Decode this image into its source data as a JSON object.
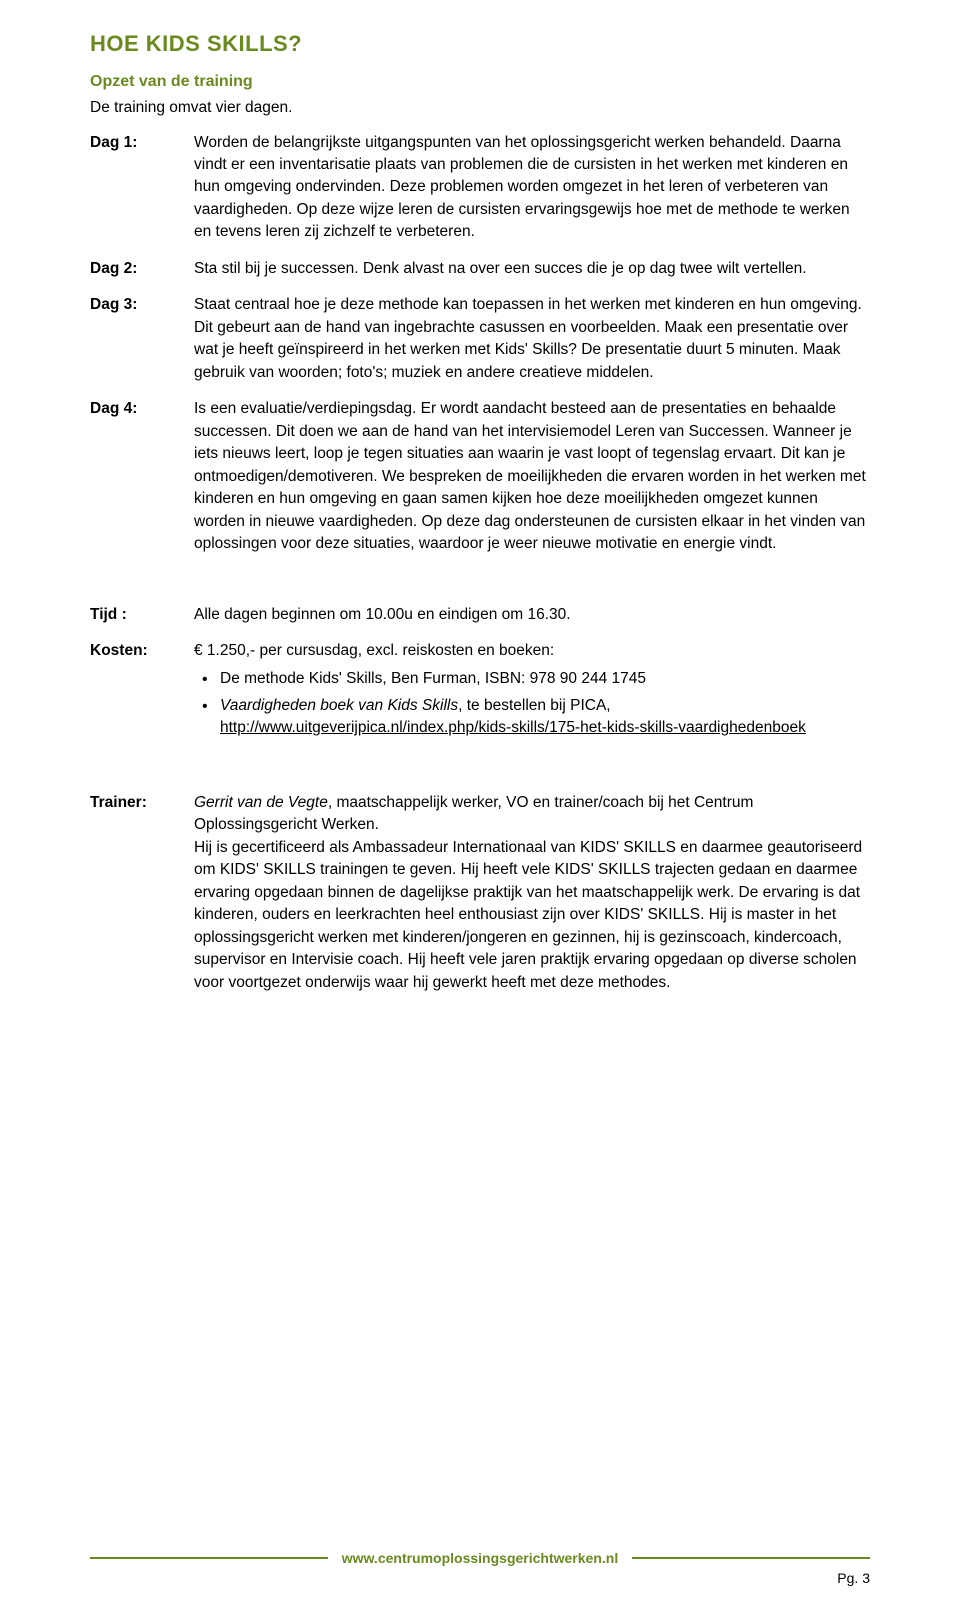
{
  "title": "HOE KIDS SKILLS?",
  "subtitle": "Opzet van de training",
  "intro": "De training omvat vier dagen.",
  "days": [
    {
      "label": "Dag 1:",
      "text": "Worden de belangrijkste uitgangspunten van het oplossingsgericht werken behandeld. Daarna vindt er een inventarisatie plaats van problemen die de cursisten in het werken met kinderen en hun omgeving ondervinden. Deze problemen worden omgezet in het leren of verbeteren van vaardigheden. Op deze wijze leren de cursisten ervaringsgewijs hoe met de methode te werken en tevens leren zij zichzelf te verbeteren."
    },
    {
      "label": "Dag 2:",
      "text": "Sta stil bij je successen. Denk alvast na over een succes die je op dag twee wilt vertellen."
    },
    {
      "label": "Dag 3:",
      "text": "Staat centraal hoe je deze methode kan toepassen in het werken met kinderen en hun omgeving. Dit gebeurt aan de hand van ingebrachte casussen en voorbeelden. Maak een presentatie over wat je heeft geïnspireerd in het werken met Kids' Skills? De presentatie duurt 5 minuten. Maak gebruik van woorden; foto's; muziek en andere creatieve middelen."
    },
    {
      "label": "Dag 4:",
      "text": "Is een evaluatie/verdiepingsdag. Er wordt aandacht besteed aan de presentaties en behaalde successen. Dit doen we aan de hand van het intervisiemodel Leren van Successen. Wanneer je iets nieuws leert, loop je tegen situaties aan waarin je vast loopt of tegenslag ervaart. Dit kan je ontmoedigen/demotiveren. We bespreken de moeilijkheden die ervaren worden in het werken met kinderen en hun omgeving en gaan samen kijken hoe deze moeilijkheden omgezet kunnen worden in nieuwe vaardigheden. Op deze dag ondersteunen de cursisten elkaar in het vinden van oplossingen voor deze situaties, waardoor je weer nieuwe motivatie en energie vindt."
    }
  ],
  "tijd": {
    "label": "Tijd :",
    "text": "Alle dagen beginnen om 10.00u en eindigen om 16.30."
  },
  "kosten": {
    "label": "Kosten:",
    "text": "€ 1.250,- per cursusdag, excl. reiskosten en boeken:",
    "bullets": [
      {
        "text": "De methode Kids' Skills, Ben Furman, ISBN: 978 90 244 1745"
      },
      {
        "italic": "Vaardigheden boek van Kids Skills",
        "rest": ", te bestellen bij PICA, ",
        "link_text": "http://www.uitgeverijpica.nl/index.php/kids-skills/175-het-kids-skills-vaardighedenboek",
        "link_href": "http://www.uitgeverijpica.nl/index.php/kids-skills/175-het-kids-skills-vaardighedenboek"
      }
    ]
  },
  "trainer": {
    "label": "Trainer:",
    "name": "Gerrit van de Vegte",
    "after_name": ", maatschappelijk werker, VO en trainer/coach bij het Centrum Oplossingsgericht Werken.",
    "body": "Hij is gecertificeerd als Ambassadeur Internationaal van KIDS' SKILLS en daarmee geautoriseerd om KIDS' SKILLS trainingen te geven. Hij heeft vele KIDS' SKILLS trajecten gedaan en daarmee ervaring opgedaan binnen de dagelijkse praktijk van het maatschappelijk werk. De ervaring is dat kinderen, ouders en leerkrachten heel enthousiast zijn over KIDS' SKILLS. Hij is master in het oplossingsgericht werken met kinderen/jongeren en gezinnen, hij is gezinscoach, kindercoach, supervisor en Intervisie coach. Hij heeft vele jaren praktijk ervaring opgedaan op diverse scholen voor voortgezet onderwijs waar hij gewerkt heeft met deze methodes."
  },
  "footer_url": "www.centrumoplossingsgerichtwerken.nl",
  "page_number": "Pg. 3",
  "colors": {
    "accent": "#6a8a1f",
    "text": "#000000",
    "background": "#ffffff"
  }
}
